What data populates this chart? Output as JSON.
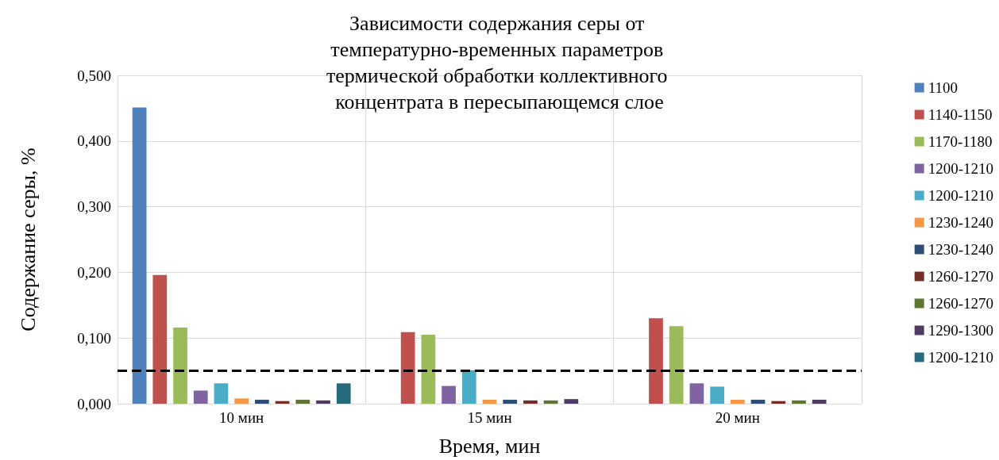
{
  "chart_data": {
    "type": "bar",
    "title": "Зависимости содержания серы от температурно-временных параметров термической обработки коллективного концентрата в пересыпающемся слое",
    "xlabel": "Время, мин",
    "ylabel": "Содержание серы, %",
    "categories": [
      "10 мин",
      "15 мин",
      "20 мин"
    ],
    "series": [
      {
        "name": "1100",
        "color": "#4f81bd",
        "values": [
          0.451,
          null,
          null
        ]
      },
      {
        "name": "1140-1150",
        "color": "#c0504d",
        "values": [
          0.196,
          0.109,
          0.13
        ]
      },
      {
        "name": "1170-1180",
        "color": "#9bbb59",
        "values": [
          0.116,
          0.105,
          0.118
        ]
      },
      {
        "name": "1200-1210",
        "color": "#8064a2",
        "values": [
          0.02,
          0.027,
          0.031
        ]
      },
      {
        "name": "1200-1210",
        "color": "#4bacc6",
        "values": [
          0.031,
          0.051,
          0.026
        ]
      },
      {
        "name": "1230-1240",
        "color": "#f79646",
        "values": [
          0.008,
          0.006,
          0.006
        ]
      },
      {
        "name": "1230-1240",
        "color": "#2c4d75",
        "values": [
          0.006,
          0.006,
          0.006
        ]
      },
      {
        "name": "1260-1270",
        "color": "#772c2a",
        "values": [
          0.004,
          0.005,
          0.004
        ]
      },
      {
        "name": "1260-1270",
        "color": "#5f7530",
        "values": [
          0.006,
          0.005,
          0.005
        ]
      },
      {
        "name": "1290-1300",
        "color": "#4d3b62",
        "values": [
          0.005,
          0.007,
          0.006
        ]
      },
      {
        "name": "1200-1210",
        "color": "#276a7c",
        "values": [
          0.031,
          null,
          null
        ]
      }
    ],
    "ylim": [
      0,
      0.5
    ],
    "yticks": [
      {
        "value": 0,
        "label": "0,000"
      },
      {
        "value": 0.1,
        "label": "0,100"
      },
      {
        "value": 0.2,
        "label": "0,200"
      },
      {
        "value": 0.3,
        "label": "0,300"
      },
      {
        "value": 0.4,
        "label": "0,400"
      },
      {
        "value": 0.5,
        "label": "0,500"
      }
    ],
    "ref_lines": [
      {
        "axis": "y",
        "value": 0.05,
        "color": "#000000",
        "line_style": "dashed"
      }
    ],
    "grid": true,
    "legend": "right"
  }
}
